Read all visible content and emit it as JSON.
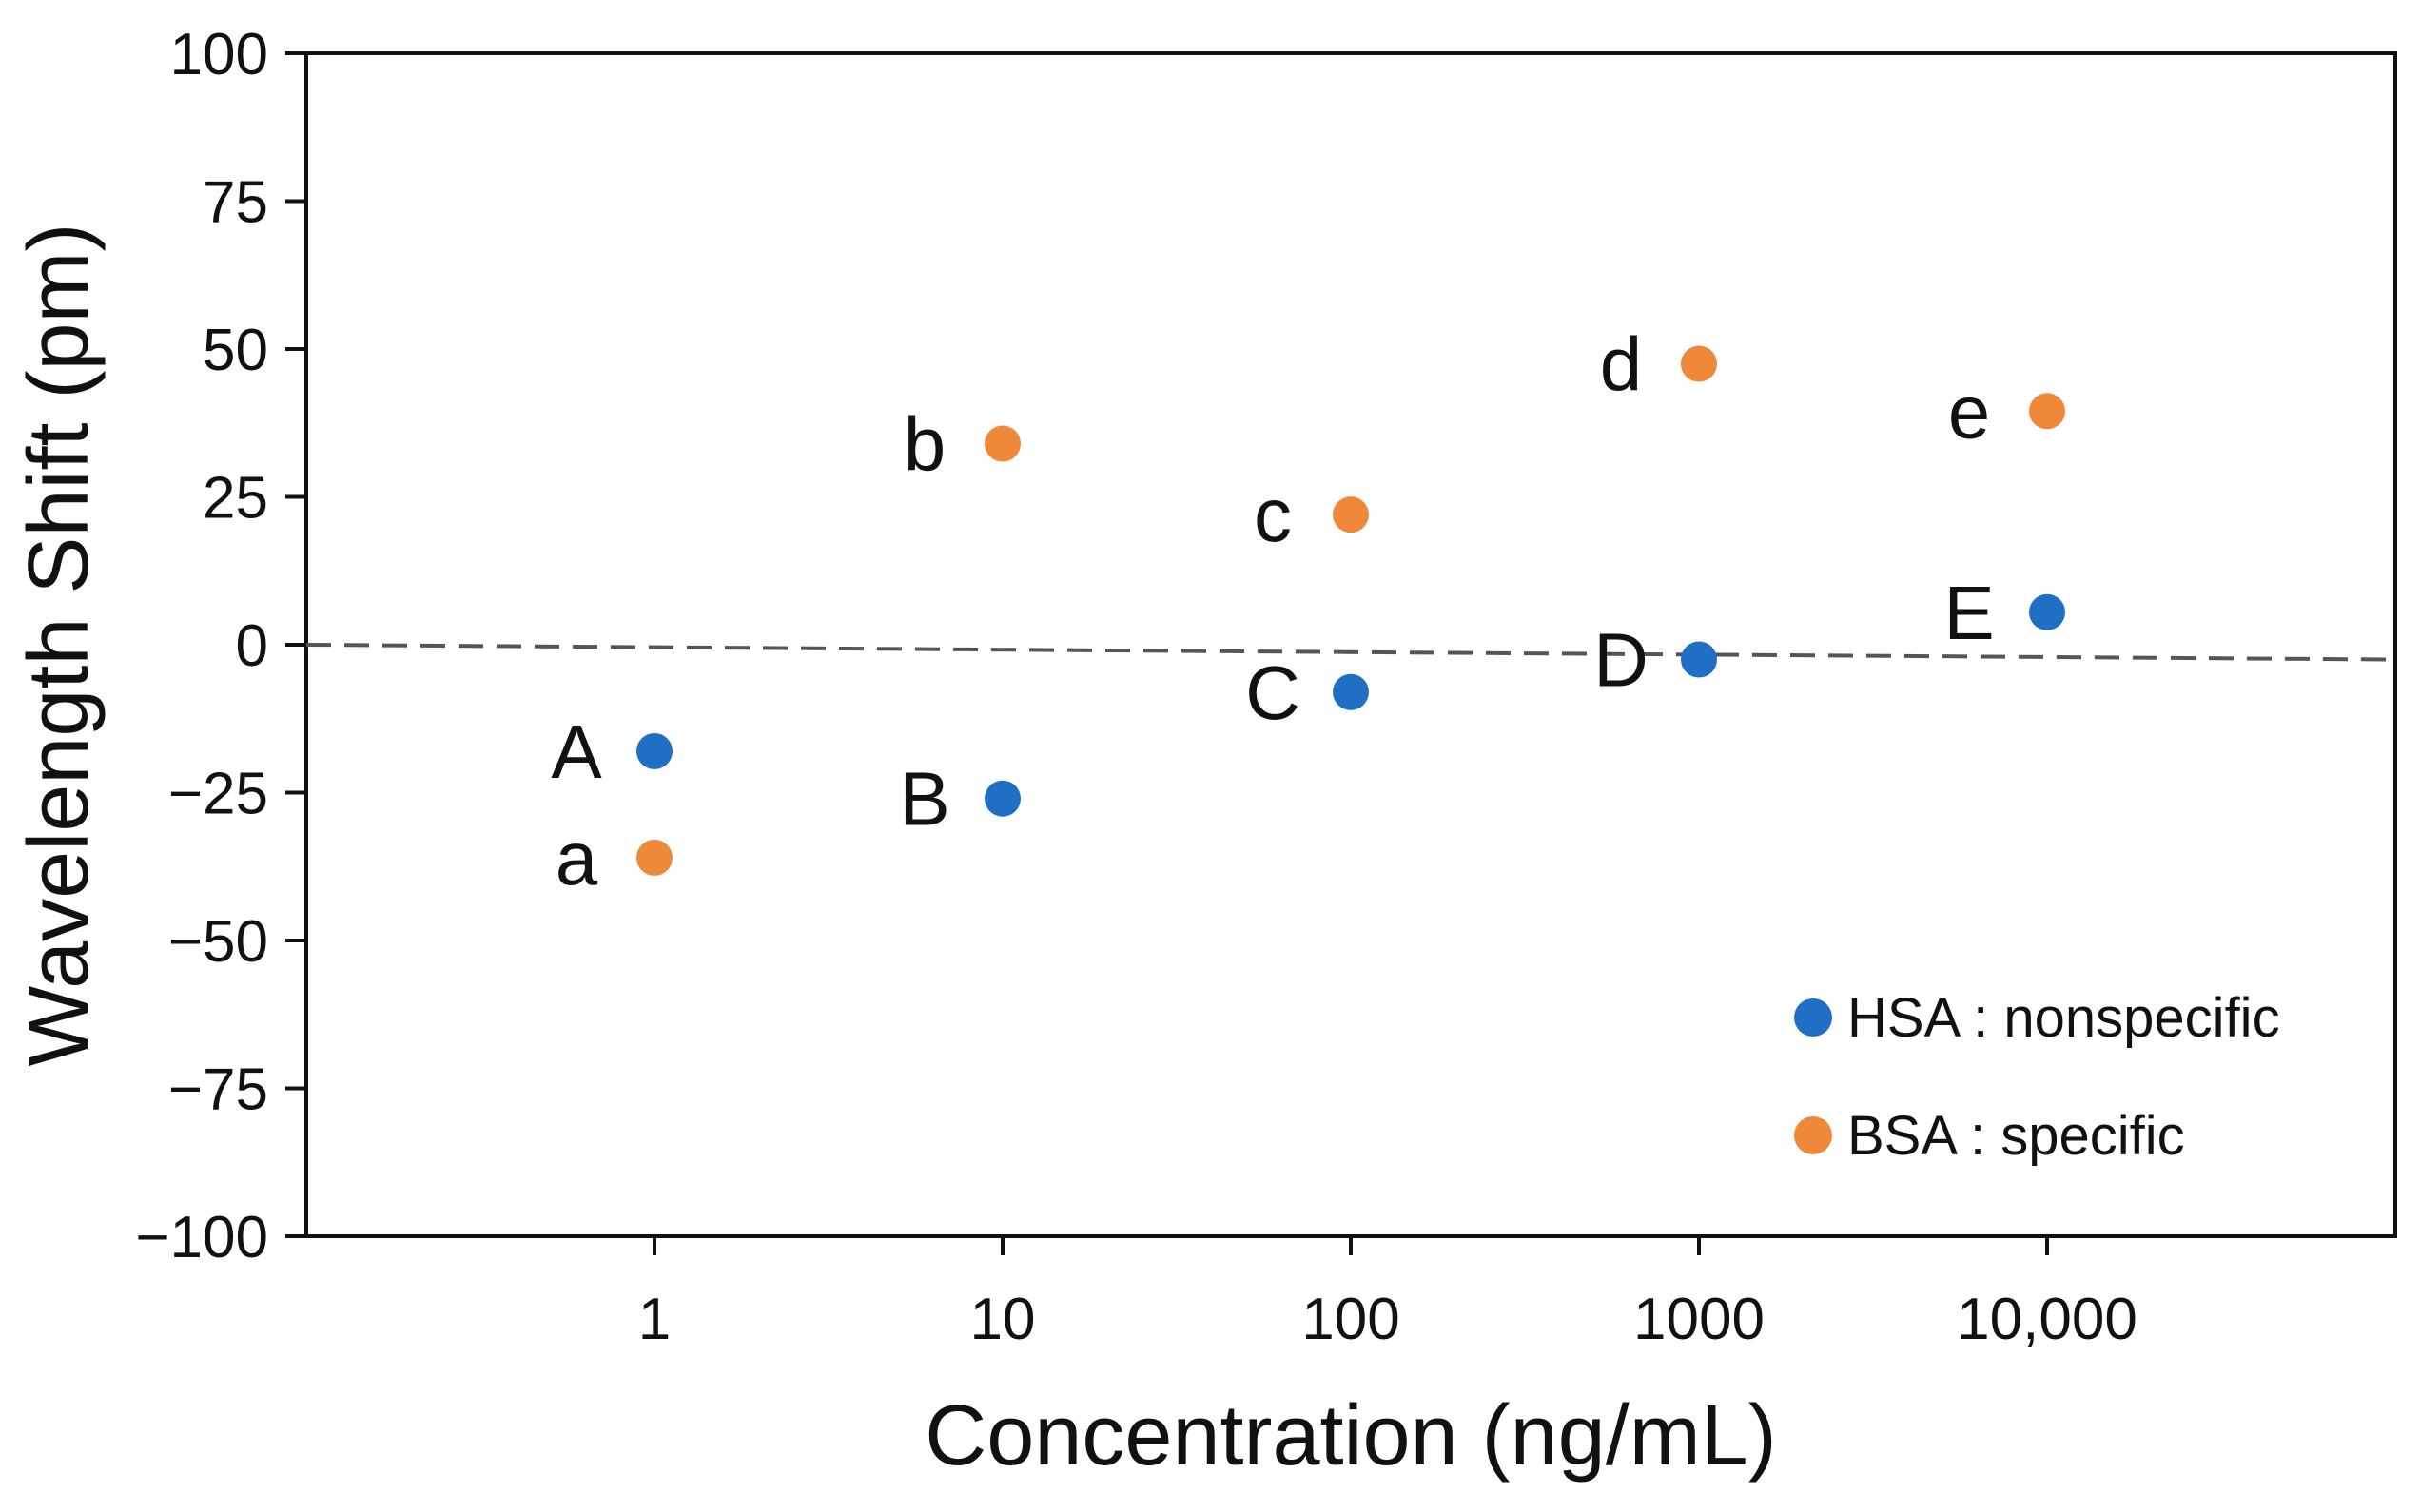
{
  "chart_data": {
    "type": "scatter",
    "title": "",
    "xlabel": "Concentration (ng/mL)",
    "ylabel": "Wavelength Shift (pm)",
    "x_scale": "log",
    "categories": [
      "1",
      "10",
      "100",
      "1000",
      "10,000"
    ],
    "x": [
      1,
      10,
      100,
      1000,
      10000
    ],
    "xlim": [
      0.1,
      100000
    ],
    "ylim": [
      -100,
      100
    ],
    "yticks": [
      100,
      75,
      50,
      25,
      0,
      -25,
      -50,
      -75,
      -100
    ],
    "ytick_labels": [
      "100",
      "75",
      "50",
      "25",
      "0",
      "−25",
      "−50",
      "−75",
      "−100"
    ],
    "grid": false,
    "legend_position": "bottom-right",
    "series": [
      {
        "name": "HSA : nonspecific",
        "color": "#1f6fc5",
        "values": [
          -18,
          -26,
          -8,
          -2.5,
          5.5
        ],
        "point_labels": [
          "A",
          "B",
          "C",
          "D",
          "E"
        ]
      },
      {
        "name": "BSA : specific",
        "color": "#f0883a",
        "values": [
          -36,
          34,
          22,
          47.5,
          39.5
        ],
        "point_labels": [
          "a",
          "b",
          "c",
          "d",
          "e"
        ]
      }
    ],
    "reference_line": {
      "style": "dashed",
      "y_start": 0,
      "y_end": -2.5,
      "color": "#555555"
    }
  }
}
